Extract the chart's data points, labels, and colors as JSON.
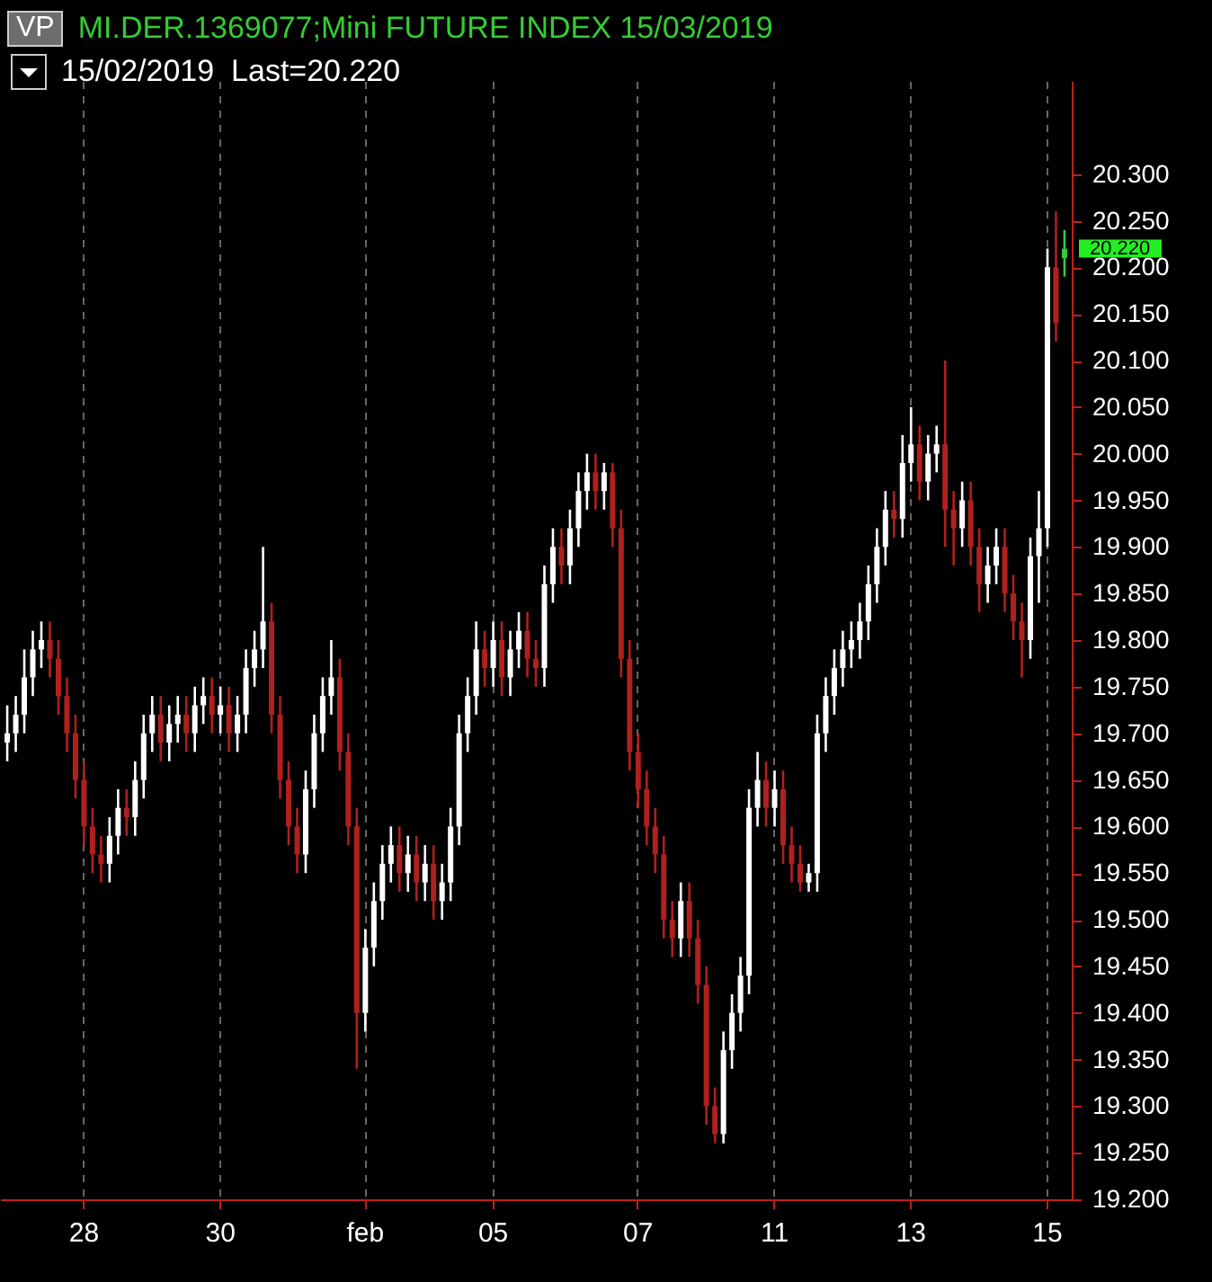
{
  "chart_data": {
    "type": "candlestick",
    "title": "MI.DER.1369077;Mini FUTURE INDEX 15/03/2019",
    "subtitle": "15/02/2019  Last=20.220",
    "annotations": [
      "VP",
      "20.220"
    ],
    "categories": [
      null,
      null,
      null,
      null,
      null,
      null,
      null,
      null,
      null,
      "28",
      null,
      null,
      null,
      null,
      null,
      null,
      null,
      null,
      null,
      null,
      null,
      null,
      null,
      null,
      null,
      "30",
      null,
      null,
      null,
      null,
      null,
      null,
      null,
      null,
      null,
      null,
      null,
      null,
      null,
      null,
      null,
      null,
      "feb",
      null,
      null,
      null,
      null,
      null,
      null,
      null,
      null,
      null,
      null,
      null,
      null,
      null,
      null,
      "05",
      null,
      null,
      null,
      null,
      null,
      null,
      null,
      null,
      null,
      null,
      null,
      null,
      null,
      null,
      null,
      null,
      "07",
      null,
      null,
      null,
      null,
      null,
      null,
      null,
      null,
      null,
      null,
      null,
      null,
      null,
      null,
      null,
      "11",
      null,
      null,
      null,
      null,
      null,
      null,
      null,
      null,
      null,
      null,
      null,
      null,
      null,
      null,
      null,
      "13",
      null,
      null,
      null,
      null,
      null,
      null,
      null,
      null,
      null,
      null,
      null,
      null,
      null,
      null,
      null,
      "15",
      null,
      null
    ],
    "ohlc": [
      [
        19690,
        19730,
        19670,
        19700
      ],
      [
        19700,
        19740,
        19680,
        19720
      ],
      [
        19720,
        19790,
        19700,
        19760
      ],
      [
        19760,
        19810,
        19740,
        19790
      ],
      [
        19790,
        19820,
        19770,
        19800
      ],
      [
        19800,
        19820,
        19760,
        19780
      ],
      [
        19780,
        19800,
        19720,
        19740
      ],
      [
        19740,
        19760,
        19680,
        19700
      ],
      [
        19700,
        19720,
        19630,
        19650
      ],
      [
        19650,
        19670,
        19580,
        19600
      ],
      [
        19600,
        19620,
        19550,
        19570
      ],
      [
        19570,
        19590,
        19540,
        19560
      ],
      [
        19560,
        19610,
        19540,
        19590
      ],
      [
        19590,
        19640,
        19570,
        19620
      ],
      [
        19620,
        19640,
        19590,
        19610
      ],
      [
        19610,
        19670,
        19590,
        19650
      ],
      [
        19650,
        19720,
        19630,
        19700
      ],
      [
        19700,
        19740,
        19680,
        19720
      ],
      [
        19720,
        19740,
        19670,
        19690
      ],
      [
        19690,
        19730,
        19670,
        19710
      ],
      [
        19710,
        19740,
        19690,
        19720
      ],
      [
        19720,
        19740,
        19680,
        19700
      ],
      [
        19700,
        19750,
        19680,
        19730
      ],
      [
        19730,
        19760,
        19710,
        19740
      ],
      [
        19740,
        19760,
        19700,
        19720
      ],
      [
        19720,
        19750,
        19700,
        19730
      ],
      [
        19730,
        19750,
        19680,
        19700
      ],
      [
        19700,
        19740,
        19680,
        19720
      ],
      [
        19720,
        19790,
        19700,
        19770
      ],
      [
        19770,
        19810,
        19750,
        19790
      ],
      [
        19790,
        19900,
        19770,
        19820
      ],
      [
        19820,
        19840,
        19700,
        19720
      ],
      [
        19720,
        19740,
        19630,
        19650
      ],
      [
        19650,
        19670,
        19580,
        19600
      ],
      [
        19600,
        19620,
        19550,
        19570
      ],
      [
        19570,
        19660,
        19550,
        19640
      ],
      [
        19640,
        19720,
        19620,
        19700
      ],
      [
        19700,
        19760,
        19680,
        19740
      ],
      [
        19740,
        19800,
        19720,
        19760
      ],
      [
        19760,
        19780,
        19660,
        19680
      ],
      [
        19680,
        19700,
        19580,
        19600
      ],
      [
        19600,
        19620,
        19340,
        19400
      ],
      [
        19400,
        19490,
        19380,
        19470
      ],
      [
        19470,
        19540,
        19450,
        19520
      ],
      [
        19520,
        19580,
        19500,
        19560
      ],
      [
        19560,
        19600,
        19540,
        19580
      ],
      [
        19580,
        19600,
        19530,
        19550
      ],
      [
        19550,
        19590,
        19530,
        19570
      ],
      [
        19570,
        19590,
        19520,
        19540
      ],
      [
        19540,
        19580,
        19520,
        19560
      ],
      [
        19560,
        19580,
        19500,
        19520
      ],
      [
        19520,
        19560,
        19500,
        19540
      ],
      [
        19540,
        19620,
        19520,
        19600
      ],
      [
        19600,
        19720,
        19580,
        19700
      ],
      [
        19700,
        19760,
        19680,
        19740
      ],
      [
        19740,
        19820,
        19720,
        19790
      ],
      [
        19790,
        19810,
        19750,
        19770
      ],
      [
        19770,
        19820,
        19750,
        19800
      ],
      [
        19800,
        19820,
        19740,
        19760
      ],
      [
        19760,
        19810,
        19740,
        19790
      ],
      [
        19790,
        19830,
        19770,
        19810
      ],
      [
        19810,
        19830,
        19760,
        19780
      ],
      [
        19780,
        19800,
        19750,
        19770
      ],
      [
        19770,
        19880,
        19750,
        19860
      ],
      [
        19860,
        19920,
        19840,
        19900
      ],
      [
        19900,
        19920,
        19860,
        19880
      ],
      [
        19880,
        19940,
        19860,
        19920
      ],
      [
        19920,
        19980,
        19900,
        19960
      ],
      [
        19960,
        20000,
        19940,
        19980
      ],
      [
        19980,
        20000,
        19940,
        19960
      ],
      [
        19960,
        19990,
        19940,
        19980
      ],
      [
        19980,
        19990,
        19900,
        19920
      ],
      [
        19920,
        19940,
        19760,
        19780
      ],
      [
        19780,
        19800,
        19660,
        19680
      ],
      [
        19680,
        19700,
        19620,
        19640
      ],
      [
        19640,
        19660,
        19580,
        19600
      ],
      [
        19600,
        19620,
        19550,
        19570
      ],
      [
        19570,
        19590,
        19480,
        19500
      ],
      [
        19500,
        19520,
        19460,
        19480
      ],
      [
        19480,
        19540,
        19460,
        19520
      ],
      [
        19520,
        19540,
        19460,
        19480
      ],
      [
        19480,
        19500,
        19410,
        19430
      ],
      [
        19430,
        19450,
        19280,
        19300
      ],
      [
        19300,
        19320,
        19260,
        19270
      ],
      [
        19270,
        19380,
        19260,
        19360
      ],
      [
        19360,
        19420,
        19340,
        19400
      ],
      [
        19400,
        19460,
        19380,
        19440
      ],
      [
        19440,
        19640,
        19420,
        19620
      ],
      [
        19620,
        19680,
        19600,
        19650
      ],
      [
        19650,
        19670,
        19600,
        19620
      ],
      [
        19620,
        19660,
        19600,
        19640
      ],
      [
        19640,
        19660,
        19560,
        19580
      ],
      [
        19580,
        19600,
        19540,
        19560
      ],
      [
        19560,
        19580,
        19530,
        19540
      ],
      [
        19540,
        19560,
        19530,
        19550
      ],
      [
        19550,
        19720,
        19530,
        19700
      ],
      [
        19700,
        19760,
        19680,
        19740
      ],
      [
        19740,
        19790,
        19720,
        19770
      ],
      [
        19770,
        19810,
        19750,
        19790
      ],
      [
        19790,
        19820,
        19770,
        19800
      ],
      [
        19800,
        19840,
        19780,
        19820
      ],
      [
        19820,
        19880,
        19800,
        19860
      ],
      [
        19860,
        19920,
        19840,
        19900
      ],
      [
        19900,
        19960,
        19880,
        19940
      ],
      [
        19940,
        19960,
        19910,
        19930
      ],
      [
        19930,
        20020,
        19910,
        19990
      ],
      [
        19990,
        20050,
        19970,
        20010
      ],
      [
        20010,
        20030,
        19950,
        19970
      ],
      [
        19970,
        20020,
        19950,
        20000
      ],
      [
        20000,
        20030,
        19980,
        20010
      ],
      [
        20010,
        20100,
        19900,
        19940
      ],
      [
        19940,
        19960,
        19880,
        19920
      ],
      [
        19920,
        19970,
        19900,
        19950
      ],
      [
        19950,
        19970,
        19880,
        19900
      ],
      [
        19900,
        19920,
        19830,
        19860
      ],
      [
        19860,
        19900,
        19840,
        19880
      ],
      [
        19880,
        19920,
        19860,
        19900
      ],
      [
        19900,
        19920,
        19830,
        19850
      ],
      [
        19850,
        19870,
        19800,
        19820
      ],
      [
        19820,
        19840,
        19760,
        19800
      ],
      [
        19800,
        19910,
        19780,
        19890
      ],
      [
        19890,
        19960,
        19840,
        19920
      ],
      [
        19920,
        20220,
        19900,
        20200
      ],
      [
        20200,
        20260,
        20120,
        20140
      ],
      [
        20210,
        20240,
        20190,
        20220
      ]
    ],
    "colors": [
      "#ffffff",
      "#ffffff",
      "#ffffff",
      "#ffffff",
      "#ffffff",
      "#b0201c",
      "#b0201c",
      "#b0201c",
      "#b0201c",
      "#b0201c",
      "#b0201c",
      "#b0201c",
      "#ffffff",
      "#ffffff",
      "#b0201c",
      "#ffffff",
      "#ffffff",
      "#ffffff",
      "#b0201c",
      "#ffffff",
      "#ffffff",
      "#b0201c",
      "#ffffff",
      "#ffffff",
      "#b0201c",
      "#ffffff",
      "#b0201c",
      "#ffffff",
      "#ffffff",
      "#ffffff",
      "#ffffff",
      "#b0201c",
      "#b0201c",
      "#b0201c",
      "#b0201c",
      "#ffffff",
      "#ffffff",
      "#ffffff",
      "#ffffff",
      "#b0201c",
      "#b0201c",
      "#b0201c",
      "#ffffff",
      "#ffffff",
      "#ffffff",
      "#ffffff",
      "#b0201c",
      "#ffffff",
      "#b0201c",
      "#ffffff",
      "#b0201c",
      "#ffffff",
      "#ffffff",
      "#ffffff",
      "#ffffff",
      "#ffffff",
      "#b0201c",
      "#ffffff",
      "#b0201c",
      "#ffffff",
      "#ffffff",
      "#b0201c",
      "#b0201c",
      "#ffffff",
      "#ffffff",
      "#b0201c",
      "#ffffff",
      "#ffffff",
      "#ffffff",
      "#b0201c",
      "#ffffff",
      "#b0201c",
      "#b0201c",
      "#b0201c",
      "#b0201c",
      "#b0201c",
      "#b0201c",
      "#b0201c",
      "#b0201c",
      "#ffffff",
      "#b0201c",
      "#b0201c",
      "#b0201c",
      "#b0201c",
      "#ffffff",
      "#ffffff",
      "#ffffff",
      "#ffffff",
      "#ffffff",
      "#b0201c",
      "#ffffff",
      "#b0201c",
      "#b0201c",
      "#b0201c",
      "#ffffff",
      "#ffffff",
      "#ffffff",
      "#ffffff",
      "#ffffff",
      "#ffffff",
      "#ffffff",
      "#ffffff",
      "#ffffff",
      "#ffffff",
      "#b0201c",
      "#ffffff",
      "#ffffff",
      "#b0201c",
      "#ffffff",
      "#ffffff",
      "#b0201c",
      "#b0201c",
      "#ffffff",
      "#b0201c",
      "#b0201c",
      "#ffffff",
      "#ffffff",
      "#b0201c",
      "#b0201c",
      "#b0201c",
      "#ffffff",
      "#ffffff",
      "#ffffff",
      "#b0201c",
      "#33cc33"
    ],
    "ylim": [
      19200,
      20400
    ],
    "yticks": [
      {
        "value": 19200,
        "label": "19.200"
      },
      {
        "value": 19250,
        "label": "19.250"
      },
      {
        "value": 19300,
        "label": "19.300"
      },
      {
        "value": 19350,
        "label": "19.350"
      },
      {
        "value": 19400,
        "label": "19.400"
      },
      {
        "value": 19450,
        "label": "19.450"
      },
      {
        "value": 19500,
        "label": "19.500"
      },
      {
        "value": 19550,
        "label": "19.550"
      },
      {
        "value": 19600,
        "label": "19.600"
      },
      {
        "value": 19650,
        "label": "19.650"
      },
      {
        "value": 19700,
        "label": "19.700"
      },
      {
        "value": 19750,
        "label": "19.750"
      },
      {
        "value": 19800,
        "label": "19.800"
      },
      {
        "value": 19850,
        "label": "19.850"
      },
      {
        "value": 19900,
        "label": "19.900"
      },
      {
        "value": 19950,
        "label": "19.950"
      },
      {
        "value": 20000,
        "label": "20.000"
      },
      {
        "value": 20050,
        "label": "20.050"
      },
      {
        "value": 20100,
        "label": "20.100"
      },
      {
        "value": 20150,
        "label": "20.150"
      },
      {
        "value": 20200,
        "label": "20.200"
      },
      {
        "value": 20250,
        "label": "20.250"
      },
      {
        "value": 20300,
        "label": "20.300"
      }
    ],
    "grid": "x"
  }
}
